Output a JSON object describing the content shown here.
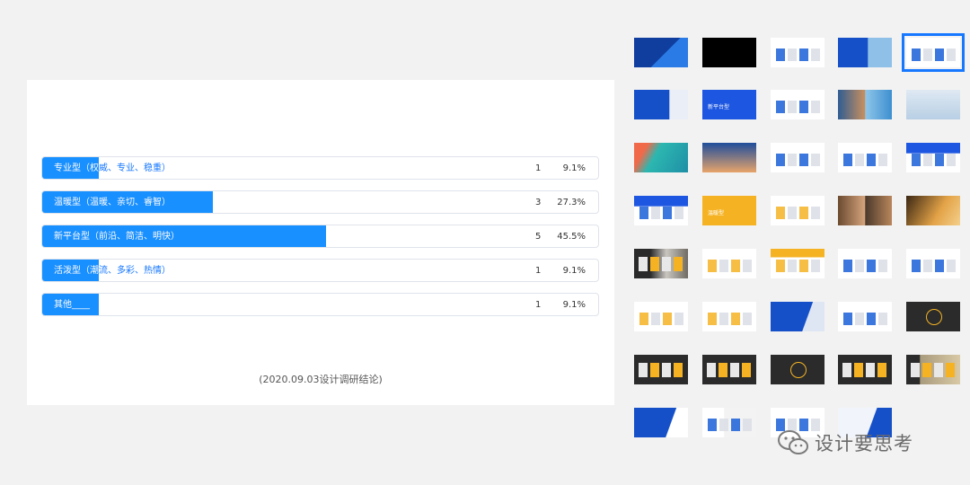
{
  "survey": {
    "rows": [
      {
        "label": "专业型（权威、专业、稳重）",
        "count": "1",
        "percent": "9.1%",
        "fraction": 0.091
      },
      {
        "label": "温暖型（温暖、亲切、睿智）",
        "count": "3",
        "percent": "27.3%",
        "fraction": 0.273
      },
      {
        "label": "新平台型（前沿、简洁、明快）",
        "count": "5",
        "percent": "45.5%",
        "fraction": 0.455
      },
      {
        "label": "活泼型（潮流、多彩、热情）",
        "count": "1",
        "percent": "9.1%",
        "fraction": 0.091
      },
      {
        "label": "其他____",
        "count": "1",
        "percent": "9.1%",
        "fraction": 0.091
      }
    ],
    "caption": "(2020.09.03设计调研结论)"
  },
  "slides": [
    {
      "style": "blue-cover",
      "text": ""
    },
    {
      "style": "black",
      "text": ""
    },
    {
      "style": "white-contents",
      "text": ""
    },
    {
      "style": "blue-split",
      "text": ""
    },
    {
      "style": "white-form",
      "text": ""
    },
    {
      "style": "blue-section",
      "text": ""
    },
    {
      "style": "blue-title",
      "text": "新平台型"
    },
    {
      "style": "white-tags",
      "text": ""
    },
    {
      "style": "photo-sky",
      "text": ""
    },
    {
      "style": "photo-building",
      "text": ""
    },
    {
      "style": "photo-balloons",
      "text": ""
    },
    {
      "style": "photo-rocket",
      "text": ""
    },
    {
      "style": "white-phone",
      "text": ""
    },
    {
      "style": "white-video",
      "text": ""
    },
    {
      "style": "white-blue-grid",
      "text": ""
    },
    {
      "style": "white-blue-cards",
      "text": ""
    },
    {
      "style": "yellow-title",
      "text": "温暖型"
    },
    {
      "style": "white-yellow-tags",
      "text": ""
    },
    {
      "style": "photo-faces",
      "text": ""
    },
    {
      "style": "photo-warm",
      "text": ""
    },
    {
      "style": "dark-photo",
      "text": ""
    },
    {
      "style": "white-phone-yellow",
      "text": ""
    },
    {
      "style": "white-yellow-cards",
      "text": ""
    },
    {
      "style": "white-circle",
      "text": ""
    },
    {
      "style": "white-cube",
      "text": ""
    },
    {
      "style": "white-yellow-row",
      "text": ""
    },
    {
      "style": "white-yellow-row2",
      "text": ""
    },
    {
      "style": "blue-section2",
      "text": ""
    },
    {
      "style": "white-profile",
      "text": ""
    },
    {
      "style": "dark-orbit",
      "text": ""
    },
    {
      "style": "dark-cards",
      "text": ""
    },
    {
      "style": "dark-phones",
      "text": ""
    },
    {
      "style": "dark-orbit2",
      "text": ""
    },
    {
      "style": "dark-cards2",
      "text": ""
    },
    {
      "style": "dark-photo2",
      "text": ""
    },
    {
      "style": "blue-section3",
      "text": ""
    },
    {
      "style": "white-social",
      "text": ""
    },
    {
      "style": "white-mixed",
      "text": ""
    },
    {
      "style": "blue-qr",
      "text": ""
    }
  ],
  "selected_slide": 4,
  "watermark": {
    "text": "设计要思考",
    "icon": "wechat-icon"
  },
  "colors": {
    "accent": "#1890ff",
    "label_blue": "#1677ff",
    "yellow": "#f5b324",
    "dark": "#2b2b2b"
  }
}
